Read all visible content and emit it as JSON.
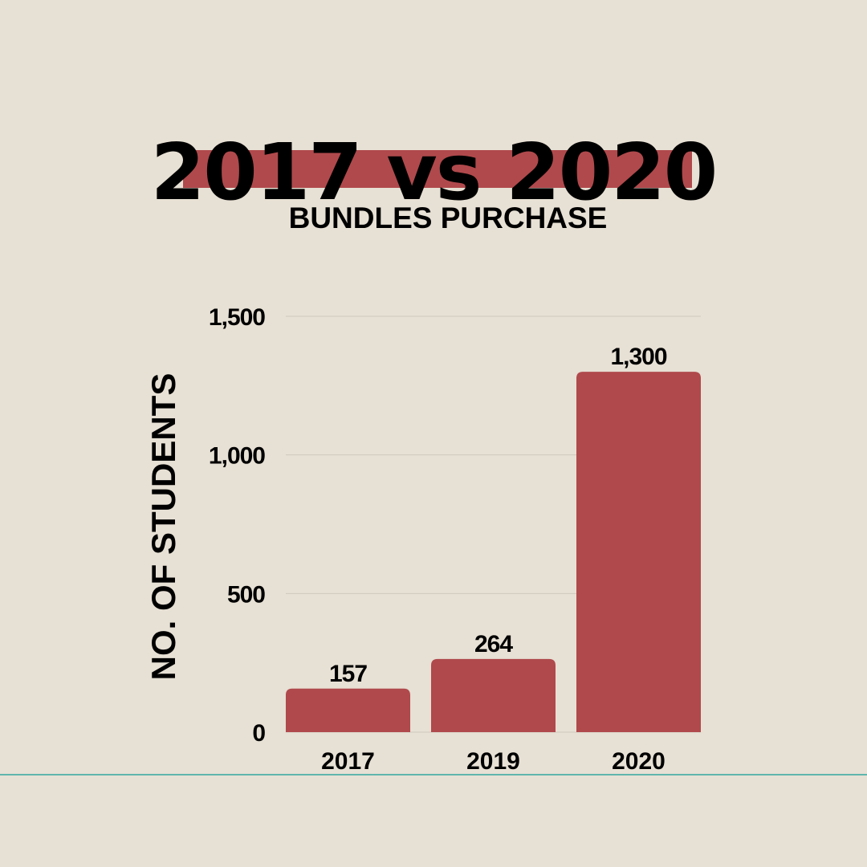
{
  "colors": {
    "background": "#e7e0d4",
    "accent": "#b0494c",
    "gridline": "#cfc8bd",
    "bottom_rule": "#5fb5ad"
  },
  "header": {
    "title": "2017 vs 2020",
    "subtitle": "BUNDLES PURCHASE"
  },
  "chart_data": {
    "type": "bar",
    "categories": [
      "2017",
      "2019",
      "2020"
    ],
    "values": [
      157,
      264,
      1300
    ],
    "value_labels": [
      "157",
      "264",
      "1,300"
    ],
    "ylabel": "NO. OF STUDENTS",
    "xlabel": "",
    "ylim": [
      0,
      1500
    ],
    "yticks": [
      0,
      500,
      1000,
      1500
    ],
    "ytick_labels": [
      "0",
      "500",
      "1,000",
      "1,500"
    ],
    "grid": true,
    "legend": "none"
  }
}
